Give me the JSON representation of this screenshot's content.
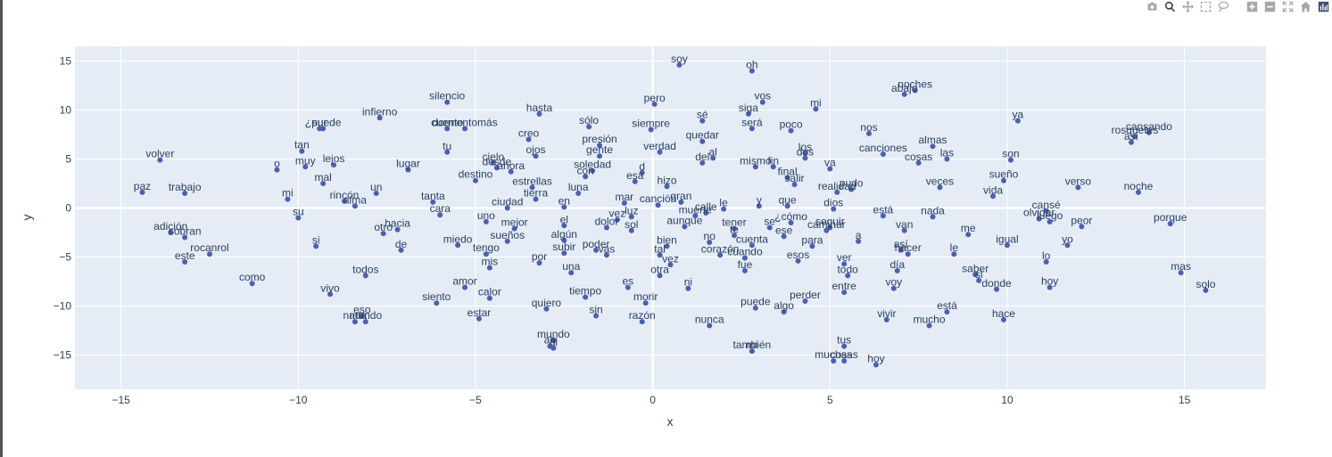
{
  "modebar": {
    "buttons": [
      {
        "name": "camera-icon",
        "title": "Download plot as a png"
      },
      {
        "name": "zoom-icon",
        "title": "Zoom"
      },
      {
        "name": "pan-icon",
        "title": "Pan"
      },
      {
        "name": "box-select-icon",
        "title": "Box Select"
      },
      {
        "name": "lasso-select-icon",
        "title": "Lasso Select"
      },
      {
        "name": "zoom-in-icon",
        "title": "Zoom in"
      },
      {
        "name": "zoom-out-icon",
        "title": "Zoom out"
      },
      {
        "name": "autoscale-icon",
        "title": "Autoscale"
      },
      {
        "name": "reset-axes-icon",
        "title": "Reset axes"
      },
      {
        "name": "plotly-logo-icon",
        "title": "Produced with Plotly"
      }
    ]
  },
  "colors": {
    "plot_bg": "#e5ecf6",
    "grid": "#ffffff",
    "marker": "#4c5fb0",
    "text": "#2a3f5f"
  },
  "chart_data": {
    "type": "scatter",
    "title": "",
    "xlabel": "x",
    "ylabel": "y",
    "xlim": [
      -16.3,
      17.3
    ],
    "ylim": [
      -18.5,
      16.5
    ],
    "xticks": [
      -15,
      -10,
      -5,
      0,
      5,
      10,
      15
    ],
    "yticks": [
      -15,
      -10,
      -5,
      0,
      5,
      10,
      15
    ],
    "tick_labels_x": [
      "−15",
      "−10",
      "−5",
      "0",
      "5",
      "10",
      "15"
    ],
    "tick_labels_y": [
      "−15",
      "−10",
      "−5",
      "0",
      "5",
      "10",
      "15"
    ],
    "grid": true,
    "mode": "markers+text",
    "points": [
      {
        "word": "soy",
        "x": 0.75,
        "y": 14.6
      },
      {
        "word": "oh",
        "x": 2.8,
        "y": 14.0
      },
      {
        "word": "noches",
        "x": 7.4,
        "y": 12.0
      },
      {
        "word": "abajo",
        "x": 7.1,
        "y": 11.6
      },
      {
        "word": "silencio",
        "x": -5.8,
        "y": 10.8
      },
      {
        "word": "pero",
        "x": 0.05,
        "y": 10.6
      },
      {
        "word": "vos",
        "x": 3.1,
        "y": 10.8
      },
      {
        "word": "mi",
        "x": 4.6,
        "y": 10.1
      },
      {
        "word": "hasta",
        "x": -3.2,
        "y": 9.6
      },
      {
        "word": "siga",
        "x": 2.7,
        "y": 9.6
      },
      {
        "word": "infierno",
        "x": -7.7,
        "y": 9.2
      },
      {
        "word": "sé",
        "x": 1.4,
        "y": 8.9
      },
      {
        "word": "ya",
        "x": 10.3,
        "y": 8.9
      },
      {
        "word": "¿puede",
        "x": -9.3,
        "y": 8.1
      },
      {
        "word": "sur",
        "x": -9.4,
        "y": 8.1
      },
      {
        "word": "cuento",
        "x": -5.8,
        "y": 8.1
      },
      {
        "word": "dormentomás",
        "x": -5.3,
        "y": 8.1
      },
      {
        "word": "sólo",
        "x": -1.8,
        "y": 8.3
      },
      {
        "word": "siempre",
        "x": -0.05,
        "y": 8.0
      },
      {
        "word": "será",
        "x": 2.8,
        "y": 8.1
      },
      {
        "word": "poco",
        "x": 3.9,
        "y": 7.9
      },
      {
        "word": "nos",
        "x": 6.1,
        "y": 7.6
      },
      {
        "word": "rosquetes",
        "x": 13.6,
        "y": 7.3
      },
      {
        "word": "cansando",
        "x": 14.0,
        "y": 7.7
      },
      {
        "word": "así",
        "x": 13.5,
        "y": 6.7
      },
      {
        "word": "creo",
        "x": -3.5,
        "y": 7.0
      },
      {
        "word": "quedar",
        "x": 1.4,
        "y": 6.8
      },
      {
        "word": "presión",
        "x": -1.5,
        "y": 6.4
      },
      {
        "word": "almas",
        "x": 7.9,
        "y": 6.3
      },
      {
        "word": "tan",
        "x": -9.9,
        "y": 5.8
      },
      {
        "word": "tu",
        "x": -5.8,
        "y": 5.7
      },
      {
        "word": "verdad",
        "x": 0.2,
        "y": 5.7
      },
      {
        "word": "los",
        "x": 4.3,
        "y": 5.6
      },
      {
        "word": "canciones",
        "x": 6.5,
        "y": 5.5
      },
      {
        "word": "ojos",
        "x": -3.3,
        "y": 5.3
      },
      {
        "word": "gente",
        "x": -1.5,
        "y": 5.3
      },
      {
        "word": "dos",
        "x": 4.3,
        "y": 5.1
      },
      {
        "word": "las",
        "x": 8.3,
        "y": 5.0
      },
      {
        "word": "volver",
        "x": -13.9,
        "y": 4.9
      },
      {
        "word": "al",
        "x": 1.7,
        "y": 5.1
      },
      {
        "word": "del",
        "x": 1.4,
        "y": 4.6
      },
      {
        "word": "son",
        "x": 10.1,
        "y": 4.9
      },
      {
        "word": "cielo",
        "x": -4.5,
        "y": 4.6
      },
      {
        "word": "cosas",
        "x": 7.5,
        "y": 4.6
      },
      {
        "word": "mismo",
        "x": 2.9,
        "y": 4.2
      },
      {
        "word": "fin",
        "x": 3.4,
        "y": 4.2
      },
      {
        "word": "muy",
        "x": -9.8,
        "y": 4.2
      },
      {
        "word": "lejos",
        "x": -9.0,
        "y": 4.4
      },
      {
        "word": "desde",
        "x": -4.4,
        "y": 4.1
      },
      {
        "word": "va",
        "x": 5.0,
        "y": 4.0
      },
      {
        "word": "o",
        "x": -10.6,
        "y": 3.9
      },
      {
        "word": "lugar",
        "x": -6.9,
        "y": 3.9
      },
      {
        "word": "ahora",
        "x": -4.0,
        "y": 3.7
      },
      {
        "word": "soledad",
        "x": -1.7,
        "y": 3.8
      },
      {
        "word": "d",
        "x": -0.3,
        "y": 3.6
      },
      {
        "word": "con",
        "x": -1.9,
        "y": 3.2
      },
      {
        "word": "final",
        "x": 3.8,
        "y": 3.1
      },
      {
        "word": "destino",
        "x": -5.0,
        "y": 2.8
      },
      {
        "word": "esa",
        "x": -0.5,
        "y": 2.7
      },
      {
        "word": "sueño",
        "x": 9.9,
        "y": 2.8
      },
      {
        "word": "mal",
        "x": -9.3,
        "y": 2.5
      },
      {
        "word": "hizo",
        "x": 0.4,
        "y": 2.2
      },
      {
        "word": "salir",
        "x": 4.0,
        "y": 2.4
      },
      {
        "word": "estrellas",
        "x": -3.4,
        "y": 2.1
      },
      {
        "word": "veces",
        "x": 8.1,
        "y": 2.1
      },
      {
        "word": "verso",
        "x": 12.0,
        "y": 2.1
      },
      {
        "word": "pudo",
        "x": 5.6,
        "y": 1.9
      },
      {
        "word": "realidad",
        "x": 5.2,
        "y": 1.6
      },
      {
        "word": "noche",
        "x": 13.7,
        "y": 1.6
      },
      {
        "word": "paz",
        "x": -14.4,
        "y": 1.6
      },
      {
        "word": "trabajo",
        "x": -13.2,
        "y": 1.5
      },
      {
        "word": "un",
        "x": -7.8,
        "y": 1.5
      },
      {
        "word": "luna",
        "x": -2.1,
        "y": 1.5
      },
      {
        "word": "vida",
        "x": 9.6,
        "y": 1.2
      },
      {
        "word": "mi",
        "x": -10.3,
        "y": 0.9
      },
      {
        "word": "tierra",
        "x": -3.3,
        "y": 0.9
      },
      {
        "word": "rincón",
        "x": -8.7,
        "y": 0.7
      },
      {
        "word": "alma",
        "x": -8.4,
        "y": 0.2
      },
      {
        "word": "tanta",
        "x": -6.2,
        "y": 0.6
      },
      {
        "word": "gran",
        "x": 0.8,
        "y": 0.6
      },
      {
        "word": "mar",
        "x": -0.8,
        "y": 0.5
      },
      {
        "word": "canción",
        "x": 0.15,
        "y": 0.3
      },
      {
        "word": "que",
        "x": 3.8,
        "y": 0.2
      },
      {
        "word": "ciudad",
        "x": -4.1,
        "y": -0.0
      },
      {
        "word": "en",
        "x": -2.5,
        "y": 0.1
      },
      {
        "word": "y",
        "x": 3.0,
        "y": 0.2
      },
      {
        "word": "dios",
        "x": 5.1,
        "y": -0.1
      },
      {
        "word": "le",
        "x": 2.0,
        "y": -0.1
      },
      {
        "word": "calle",
        "x": 1.5,
        "y": -0.5
      },
      {
        "word": "cansé",
        "x": 11.1,
        "y": -0.3
      },
      {
        "word": "cara",
        "x": -6.0,
        "y": -0.7
      },
      {
        "word": "luz",
        "x": -0.6,
        "y": -0.9
      },
      {
        "word": "muerte",
        "x": 1.2,
        "y": -0.8
      },
      {
        "word": "está",
        "x": 6.5,
        "y": -0.8
      },
      {
        "word": "nada",
        "x": 7.9,
        "y": -0.9
      },
      {
        "word": "olvidar",
        "x": 10.9,
        "y": -1.1
      },
      {
        "word": "luego",
        "x": 11.2,
        "y": -1.4
      },
      {
        "word": "su",
        "x": -10.0,
        "y": -1.0
      },
      {
        "word": "vez",
        "x": -1.0,
        "y": -1.2
      },
      {
        "word": "uno",
        "x": -4.7,
        "y": -1.4
      },
      {
        "word": "¿cómo",
        "x": 3.9,
        "y": -1.5
      },
      {
        "word": "aunque",
        "x": 0.9,
        "y": -1.9
      },
      {
        "word": "dolor",
        "x": -1.3,
        "y": -2.0
      },
      {
        "word": "sol",
        "x": -0.6,
        "y": -2.3
      },
      {
        "word": "el",
        "x": -2.5,
        "y": -1.8
      },
      {
        "word": "tener",
        "x": 2.3,
        "y": -2.1
      },
      {
        "word": "se",
        "x": 3.3,
        "y": -2.0
      },
      {
        "word": "seguir",
        "x": 5.0,
        "y": -2.0
      },
      {
        "word": "caminar",
        "x": 4.9,
        "y": -2.3
      },
      {
        "word": "peor",
        "x": 12.1,
        "y": -1.9
      },
      {
        "word": "porque",
        "x": 14.6,
        "y": -1.6
      },
      {
        "word": "mejor",
        "x": -3.9,
        "y": -2.1
      },
      {
        "word": "van",
        "x": 7.1,
        "y": -2.3
      },
      {
        "word": "hacia",
        "x": -7.2,
        "y": -2.2
      },
      {
        "word": "te",
        "x": 2.3,
        "y": -2.8
      },
      {
        "word": "adición",
        "x": -13.6,
        "y": -2.5
      },
      {
        "word": "sobran",
        "x": -13.2,
        "y": -3.0
      },
      {
        "word": "otro",
        "x": -7.6,
        "y": -2.6
      },
      {
        "word": "ese",
        "x": 3.7,
        "y": -2.9
      },
      {
        "word": "me",
        "x": 8.9,
        "y": -2.7
      },
      {
        "word": "algún",
        "x": -2.5,
        "y": -3.3
      },
      {
        "word": "sueños",
        "x": -4.1,
        "y": -3.4
      },
      {
        "word": "a",
        "x": 5.8,
        "y": -3.4
      },
      {
        "word": "cuenta",
        "x": 2.8,
        "y": -3.8
      },
      {
        "word": "bien",
        "x": 0.4,
        "y": -3.9
      },
      {
        "word": "no",
        "x": 1.6,
        "y": -3.5
      },
      {
        "word": "miedo",
        "x": -5.5,
        "y": -3.8
      },
      {
        "word": "para",
        "x": 4.5,
        "y": -3.9
      },
      {
        "word": "igual",
        "x": 10.0,
        "y": -3.8
      },
      {
        "word": "yo",
        "x": 11.7,
        "y": -3.8
      },
      {
        "word": "si",
        "x": -9.5,
        "y": -3.9
      },
      {
        "word": "de",
        "x": -7.1,
        "y": -4.3
      },
      {
        "word": "así",
        "x": 7.0,
        "y": -4.3
      },
      {
        "word": "poder",
        "x": -1.6,
        "y": -4.3
      },
      {
        "word": "subir",
        "x": -2.5,
        "y": -4.6
      },
      {
        "word": "tengo",
        "x": -4.7,
        "y": -4.7
      },
      {
        "word": "rocanrol",
        "x": -12.5,
        "y": -4.7
      },
      {
        "word": "hacer",
        "x": 7.2,
        "y": -4.7
      },
      {
        "word": "vas",
        "x": -1.3,
        "y": -4.8
      },
      {
        "word": "tal",
        "x": 0.2,
        "y": -4.8
      },
      {
        "word": "le",
        "x": 8.5,
        "y": -4.7
      },
      {
        "word": "corazón",
        "x": 1.9,
        "y": -4.8
      },
      {
        "word": "cuando",
        "x": 2.6,
        "y": -5.1
      },
      {
        "word": "este",
        "x": -13.2,
        "y": -5.5
      },
      {
        "word": "esos",
        "x": 4.1,
        "y": -5.4
      },
      {
        "word": "lo",
        "x": 11.1,
        "y": -5.5
      },
      {
        "word": "por",
        "x": -3.2,
        "y": -5.6
      },
      {
        "word": "vez",
        "x": 0.5,
        "y": -5.8
      },
      {
        "word": "ver",
        "x": 5.4,
        "y": -5.7
      },
      {
        "word": "mis",
        "x": -4.6,
        "y": -6.1
      },
      {
        "word": "mas",
        "x": 14.9,
        "y": -6.6
      },
      {
        "word": "fue",
        "x": 2.6,
        "y": -6.4
      },
      {
        "word": "día",
        "x": 6.9,
        "y": -6.4
      },
      {
        "word": "una",
        "x": -2.3,
        "y": -6.6
      },
      {
        "word": "todos",
        "x": -8.1,
        "y": -6.9
      },
      {
        "word": "otra",
        "x": 0.2,
        "y": -6.9
      },
      {
        "word": "todo",
        "x": 5.5,
        "y": -6.9
      },
      {
        "word": "saber",
        "x": 9.1,
        "y": -6.8
      },
      {
        "word": "si",
        "x": 9.2,
        "y": -7.4
      },
      {
        "word": "como",
        "x": -11.3,
        "y": -7.7
      },
      {
        "word": "amor",
        "x": -5.3,
        "y": -8.1
      },
      {
        "word": "es",
        "x": -0.7,
        "y": -8.1
      },
      {
        "word": "ni",
        "x": 1.0,
        "y": -8.2
      },
      {
        "word": "voy",
        "x": 6.8,
        "y": -8.2
      },
      {
        "word": "hoy",
        "x": 11.2,
        "y": -8.1
      },
      {
        "word": "donde",
        "x": 9.7,
        "y": -8.3
      },
      {
        "word": "solo",
        "x": 15.6,
        "y": -8.4
      },
      {
        "word": "entre",
        "x": 5.4,
        "y": -8.6
      },
      {
        "word": "vivo",
        "x": -9.1,
        "y": -8.8
      },
      {
        "word": "calor",
        "x": -4.6,
        "y": -9.2
      },
      {
        "word": "tiempo",
        "x": -1.9,
        "y": -9.1
      },
      {
        "word": "perder",
        "x": 4.3,
        "y": -9.5
      },
      {
        "word": "morir",
        "x": -0.2,
        "y": -9.7
      },
      {
        "word": "siento",
        "x": -6.1,
        "y": -9.7
      },
      {
        "word": "quiero",
        "x": -3.0,
        "y": -10.3
      },
      {
        "word": "puede",
        "x": 2.9,
        "y": -10.2
      },
      {
        "word": "algo",
        "x": 3.7,
        "y": -10.6
      },
      {
        "word": "está",
        "x": 8.3,
        "y": -10.6
      },
      {
        "word": "sin",
        "x": -1.6,
        "y": -11.0
      },
      {
        "word": "eso",
        "x": -8.2,
        "y": -11.0
      },
      {
        "word": "estar",
        "x": -4.9,
        "y": -11.3
      },
      {
        "word": "vivir",
        "x": 6.6,
        "y": -11.4
      },
      {
        "word": "hace",
        "x": 9.9,
        "y": -11.4
      },
      {
        "word": "nada",
        "x": -8.4,
        "y": -11.6
      },
      {
        "word": "mundo",
        "x": -8.1,
        "y": -11.6
      },
      {
        "word": "razón",
        "x": -0.3,
        "y": -11.6
      },
      {
        "word": "mucho",
        "x": 7.8,
        "y": -12.0
      },
      {
        "word": "nunca",
        "x": 1.6,
        "y": -12.0
      },
      {
        "word": "mundo",
        "x": -2.8,
        "y": -13.5
      },
      {
        "word": "ah",
        "x": -2.9,
        "y": -14.1
      },
      {
        "word": "al",
        "x": -2.8,
        "y": -14.3
      },
      {
        "word": "tus",
        "x": 5.4,
        "y": -14.1
      },
      {
        "word": "también",
        "x": 2.8,
        "y": -14.6
      },
      {
        "word": "mi",
        "x": 2.8,
        "y": -14.6
      },
      {
        "word": "muchas",
        "x": 5.1,
        "y": -15.6
      },
      {
        "word": "cosas",
        "x": 5.4,
        "y": -15.6
      },
      {
        "word": "hoy",
        "x": 6.3,
        "y": -16.0
      }
    ]
  }
}
